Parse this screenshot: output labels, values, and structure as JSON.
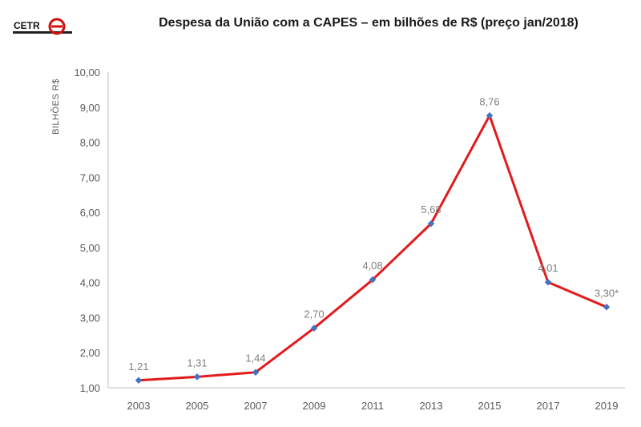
{
  "logo": {
    "text": "CETR"
  },
  "chart_data": {
    "type": "line",
    "title": "Despesa da União com a CAPES – em bilhões de R$ (preço jan/2018)",
    "xlabel": "",
    "ylabel": "BILHÕES R$",
    "ylim": [
      1,
      10
    ],
    "y_ticks": [
      "1,00",
      "2,00",
      "3,00",
      "4,00",
      "5,00",
      "6,00",
      "7,00",
      "8,00",
      "9,00",
      "10,00"
    ],
    "grid": false,
    "categories": [
      "2003",
      "2005",
      "2007",
      "2009",
      "2011",
      "2013",
      "2015",
      "2017",
      "2019"
    ],
    "series": [
      {
        "values": [
          1.21,
          1.31,
          1.44,
          2.7,
          4.08,
          5.68,
          8.76,
          4.01,
          3.3
        ],
        "labels": [
          "1,21",
          "1,31",
          "1,44",
          "2,70",
          "4,08",
          "5,68",
          "8,76",
          "4,01",
          "3,30*"
        ],
        "color": "#e31a1c",
        "marker_color": "#4472c4"
      }
    ]
  }
}
